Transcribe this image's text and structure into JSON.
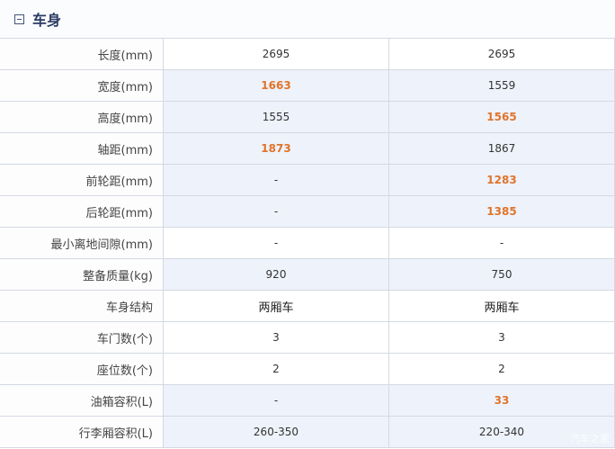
{
  "section": {
    "title": "车身",
    "icon": "collapse-minus-icon"
  },
  "highlight_color": "#e0742a",
  "rows": [
    {
      "label": "长度(mm)",
      "values": [
        "2695",
        "2695"
      ],
      "diff": false,
      "hl": [
        false,
        false
      ]
    },
    {
      "label": "宽度(mm)",
      "values": [
        "1663",
        "1559"
      ],
      "diff": true,
      "hl": [
        true,
        false
      ]
    },
    {
      "label": "高度(mm)",
      "values": [
        "1555",
        "1565"
      ],
      "diff": true,
      "hl": [
        false,
        true
      ]
    },
    {
      "label": "轴距(mm)",
      "values": [
        "1873",
        "1867"
      ],
      "diff": true,
      "hl": [
        true,
        false
      ]
    },
    {
      "label": "前轮距(mm)",
      "values": [
        "-",
        "1283"
      ],
      "diff": true,
      "hl": [
        false,
        true
      ]
    },
    {
      "label": "后轮距(mm)",
      "values": [
        "-",
        "1385"
      ],
      "diff": true,
      "hl": [
        false,
        true
      ]
    },
    {
      "label": "最小离地间隙(mm)",
      "values": [
        "-",
        "-"
      ],
      "diff": false,
      "hl": [
        false,
        false
      ]
    },
    {
      "label": "整备质量(kg)",
      "values": [
        "920",
        "750"
      ],
      "diff": true,
      "hl": [
        false,
        false
      ]
    },
    {
      "label": "车身结构",
      "values": [
        "两厢车",
        "两厢车"
      ],
      "diff": false,
      "hl": [
        false,
        false
      ],
      "cn": true
    },
    {
      "label": "车门数(个)",
      "values": [
        "3",
        "3"
      ],
      "diff": false,
      "hl": [
        false,
        false
      ]
    },
    {
      "label": "座位数(个)",
      "values": [
        "2",
        "2"
      ],
      "diff": false,
      "hl": [
        false,
        false
      ]
    },
    {
      "label": "油箱容积(L)",
      "values": [
        "-",
        "33"
      ],
      "diff": true,
      "hl": [
        false,
        true
      ]
    },
    {
      "label": "行李厢容积(L)",
      "values": [
        "260-350",
        "220-340"
      ],
      "diff": true,
      "hl": [
        false,
        false
      ]
    }
  ],
  "watermark": "汽车之家"
}
